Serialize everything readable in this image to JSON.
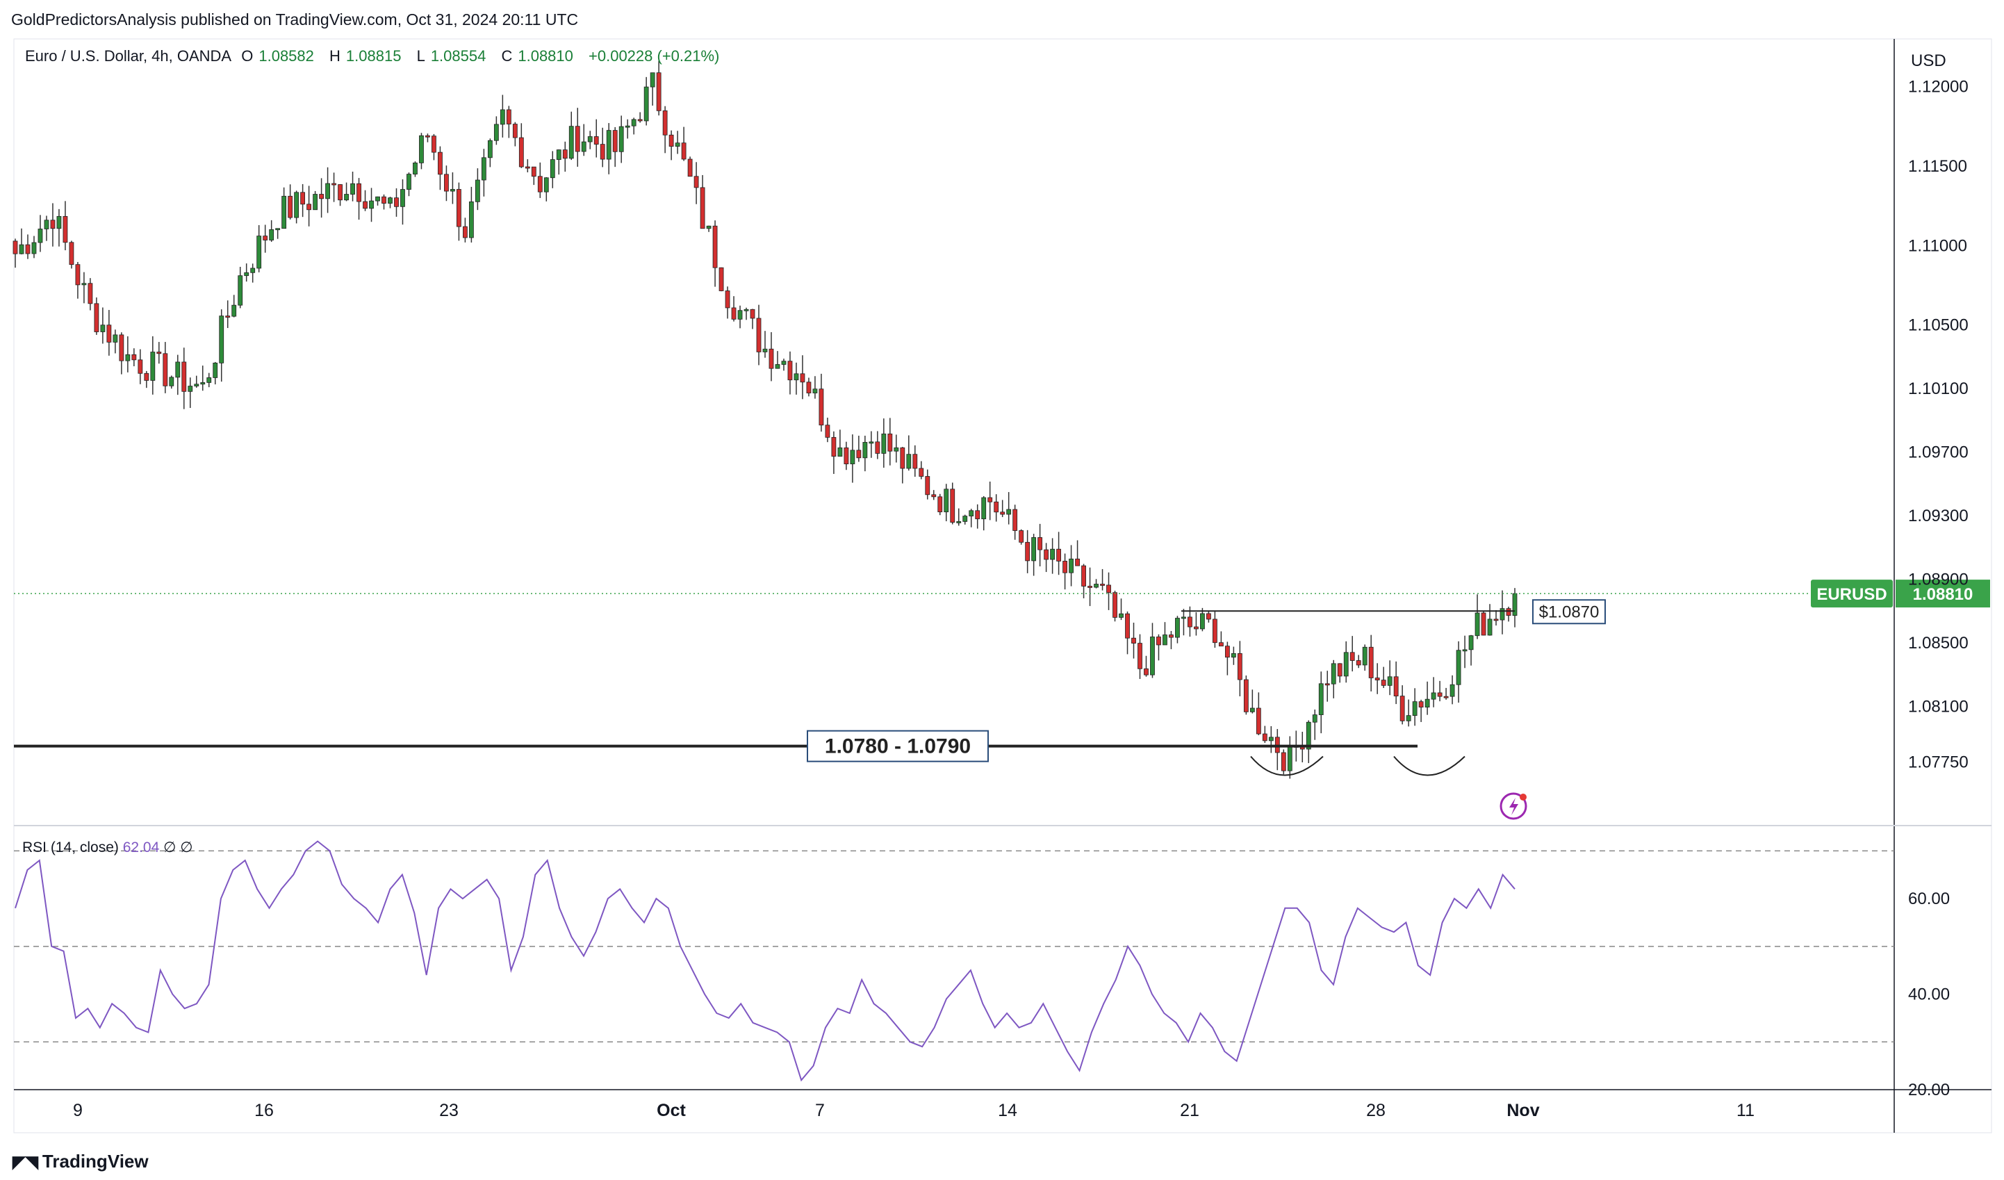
{
  "header": {
    "publish_line": "GoldPredictorsAnalysis published on TradingView.com, Oct 31, 2024 20:11 UTC"
  },
  "legend": {
    "symbol": "Euro / U.S. Dollar, 4h, OANDA",
    "open_label": "O",
    "open": "1.08582",
    "high_label": "H",
    "high": "1.08815",
    "low_label": "L",
    "low": "1.08554",
    "close_label": "C",
    "close": "1.08810",
    "change": "+0.00228 (+0.21%)"
  },
  "rsi_legend": {
    "label": "RSI (14, close)",
    "value": "62.04",
    "extra1": "∅",
    "extra2": "∅"
  },
  "footer": {
    "brand": "TradingView",
    "brand_icon": "tradingview-logo-icon"
  },
  "colors": {
    "up": "#26a69a",
    "up_fill": "#2e8b3a",
    "down": "#d32f2f",
    "rsi": "#7e57c2",
    "price_tag": "#3aa34a",
    "grid": "#e0e3eb"
  },
  "annotations": {
    "support_label": "1.0780 - 1.0790",
    "neckline_label": "$1.0870",
    "ticker_tag": "EURUSD",
    "price_tag": "1.08810",
    "flash_icon": "lightning-icon"
  },
  "chart_data": [
    {
      "type": "candlestick",
      "title": "Euro / U.S. Dollar, 4h, OANDA",
      "currency_label": "USD",
      "y_ticks": [
        "1.12000",
        "1.11500",
        "1.11000",
        "1.10500",
        "1.10100",
        "1.09700",
        "1.09300",
        "1.08900",
        "1.08500",
        "1.08100",
        "1.07750"
      ],
      "ylim": [
        1.0735,
        1.123
      ],
      "x_ticks": [
        "9",
        "16",
        "23",
        "Oct",
        "7",
        "14",
        "21",
        "28",
        "Nov",
        "11"
      ],
      "last_price": 1.0881,
      "support_zone": [
        1.078,
        1.079
      ],
      "neckline": 1.087,
      "pattern": "double bottom",
      "swing_path": [
        [
          "Sep 5",
          1.1095
        ],
        [
          "Sep 6",
          1.112
        ],
        [
          "Sep 9",
          1.106
        ],
        [
          "Sep 10",
          1.103
        ],
        [
          "Sep 11",
          1.102
        ],
        [
          "Sep 12",
          1.101
        ],
        [
          "Sep 13",
          1.108
        ],
        [
          "Sep 16",
          1.112
        ],
        [
          "Sep 17",
          1.113
        ],
        [
          "Sep 18",
          1.114
        ],
        [
          "Sep 19",
          1.112
        ],
        [
          "Sep 20",
          1.117
        ],
        [
          "Sep 23",
          1.111
        ],
        [
          "Sep 24",
          1.118
        ],
        [
          "Sep 25",
          1.114
        ],
        [
          "Sep 26",
          1.117
        ],
        [
          "Sep 27",
          1.116
        ],
        [
          "Sep 30",
          1.12
        ],
        [
          "Oct 1",
          1.114
        ],
        [
          "Oct 2",
          1.107
        ],
        [
          "Oct 3",
          1.1035
        ],
        [
          "Oct 4",
          1.102
        ],
        [
          "Oct 7",
          1.097
        ],
        [
          "Oct 8",
          1.098
        ],
        [
          "Oct 9",
          1.0955
        ],
        [
          "Oct 10",
          1.0935
        ],
        [
          "Oct 11",
          1.094
        ],
        [
          "Oct 14",
          1.091
        ],
        [
          "Oct 15",
          1.0895
        ],
        [
          "Oct 16",
          1.088
        ],
        [
          "Oct 17",
          1.0835
        ],
        [
          "Oct 18",
          1.086
        ],
        [
          "Oct 21",
          1.086
        ],
        [
          "Oct 22",
          1.0805
        ],
        [
          "Oct 23",
          1.0775
        ],
        [
          "Oct 24",
          1.083
        ],
        [
          "Oct 25",
          1.084
        ],
        [
          "Oct 28",
          1.081
        ],
        [
          "Oct 29",
          1.082
        ],
        [
          "Oct 30",
          1.086
        ],
        [
          "Oct 31",
          1.0881
        ]
      ]
    },
    {
      "type": "line",
      "title": "RSI (14, close)",
      "y_ticks": [
        "60.00",
        "40.00",
        "20.00"
      ],
      "levels": [
        70,
        50,
        30
      ],
      "ylim": [
        20,
        75
      ],
      "series": [
        {
          "values": [
            58,
            66,
            68,
            50,
            49,
            35,
            37,
            33,
            38,
            36,
            33,
            32,
            45,
            40,
            37,
            38,
            42,
            60,
            66,
            68,
            62,
            58,
            62,
            65,
            70,
            72,
            70,
            63,
            60,
            58,
            55,
            62,
            65,
            57,
            44,
            58,
            62,
            60,
            62,
            64,
            60,
            45,
            52,
            65,
            68,
            58,
            52,
            48,
            53,
            60,
            62,
            58,
            55,
            60,
            58,
            50,
            45,
            40,
            36,
            35,
            38,
            34,
            33,
            32,
            30,
            22,
            25,
            33,
            37,
            36,
            43,
            38,
            36,
            33,
            30,
            29,
            33,
            39,
            42,
            45,
            38,
            33,
            36,
            33,
            34,
            38,
            33,
            28,
            24,
            32,
            38,
            43,
            50,
            46,
            40,
            36,
            34,
            30,
            36,
            33,
            28,
            26,
            34,
            42,
            50,
            58,
            58,
            55,
            45,
            42,
            52,
            58,
            56,
            54,
            53,
            55,
            46,
            44,
            55,
            60,
            58,
            62,
            58,
            65,
            62
          ]
        }
      ]
    }
  ]
}
